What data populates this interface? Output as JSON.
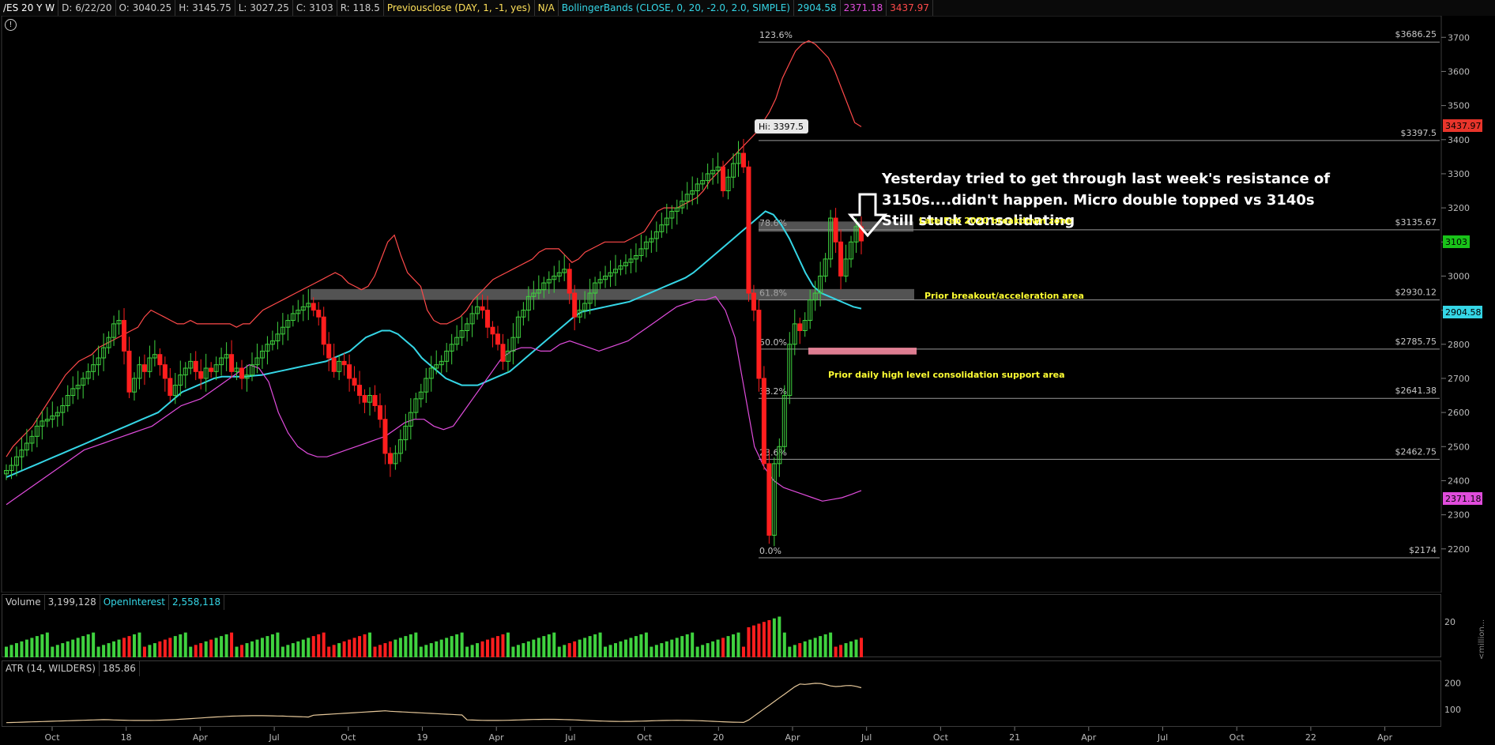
{
  "header": {
    "symbol": "/ES 20 Y W",
    "date": "D: 6/22/20",
    "open": "O: 3040.25",
    "high": "H: 3145.75",
    "low": "L: 3027.25",
    "close": "C: 3103",
    "range": "R: 118.5",
    "study1": "Previousclose (DAY, 1, -1, yes)",
    "study1_val": "N/A",
    "study2": "BollingerBands (CLOSE, 0, 20, -2.0, 2.0, SIMPLE)",
    "bb_mid": "2904.58",
    "bb_low": "2371.18",
    "bb_up": "3437.97"
  },
  "colors": {
    "up": "#3fd23f",
    "down": "#ff1e1e",
    "upper": "#ff4a4a",
    "mid": "#35d6e6",
    "lower": "#e04cdc",
    "annot": "#ffff33",
    "bg": "#000000"
  },
  "annotation": {
    "line1": "Yesterday tried to get through last week's resistance of",
    "line2": "3150s....didn't happen. Micro double topped vs 3140s",
    "line3": "Still stuck consolidating"
  },
  "zones": [
    {
      "label": "Late Feb 2020 breakdown zone"
    },
    {
      "label": "Prior breakout/acceleration area"
    },
    {
      "label": "Prior daily high level consolidation support area"
    }
  ],
  "hi_label": "Hi: 3397.5",
  "price_tags": {
    "last": "3103",
    "upper": "3437.97",
    "mid": "2904.58",
    "lower": "2371.18"
  },
  "volume_header": {
    "label": "Volume",
    "value": "3,199,128",
    "oi_label": "OpenInterest",
    "oi_value": "2,558,118",
    "unit": "<million..."
  },
  "atr_header": {
    "label": "ATR (14, WILDERS)",
    "value": "185.86"
  },
  "chart_data": [
    {
      "type": "candlestick",
      "title": "/ES 20 Y W",
      "ylim": [
        2130,
        3740
      ],
      "y_ticks": [
        2200,
        2300,
        2400,
        2500,
        2600,
        2700,
        2800,
        2900,
        3000,
        3100,
        3200,
        3300,
        3400,
        3500,
        3600,
        3700
      ],
      "x_ticks": [
        "Oct",
        "18",
        "Apr",
        "Jul",
        "Oct",
        "19",
        "Apr",
        "Jul",
        "Oct",
        "20",
        "Apr",
        "Jul",
        "Oct",
        "21",
        "Apr",
        "Jul",
        "Oct",
        "22",
        "Apr"
      ],
      "fib_levels": [
        {
          "pct": "123.6%",
          "value": 3686.25,
          "label": "$3686.25"
        },
        {
          "pct": "78.6%",
          "value": 3135.67,
          "label": "$3135.67"
        },
        {
          "pct": "61.8%",
          "value": 2930.12,
          "label": "$2930.12"
        },
        {
          "pct": "50.0%",
          "value": 2785.75,
          "label": "$2785.75"
        },
        {
          "pct": "38.2%",
          "value": 2641.38,
          "label": "$2641.38"
        },
        {
          "pct": "23.6%",
          "value": 2462.75,
          "label": "$2462.75"
        },
        {
          "pct": "0.0%",
          "value": 2174,
          "label": "$2174"
        },
        {
          "pct": "",
          "value": 3397.5,
          "label": "$3397.5"
        }
      ],
      "series": [
        {
          "name": "close",
          "values": [
            2430,
            2445,
            2470,
            2490,
            2510,
            2530,
            2560,
            2575,
            2580,
            2590,
            2600,
            2620,
            2650,
            2670,
            2680,
            2700,
            2720,
            2740,
            2760,
            2790,
            2820,
            2860,
            2870,
            2780,
            2660,
            2700,
            2740,
            2720,
            2760,
            2770,
            2740,
            2700,
            2650,
            2680,
            2710,
            2730,
            2750,
            2720,
            2700,
            2730,
            2720,
            2740,
            2760,
            2770,
            2720,
            2730,
            2700,
            2710,
            2740,
            2760,
            2780,
            2800,
            2810,
            2830,
            2850,
            2870,
            2890,
            2900,
            2910,
            2920,
            2900,
            2880,
            2800,
            2760,
            2720,
            2750,
            2740,
            2700,
            2680,
            2650,
            2630,
            2650,
            2620,
            2580,
            2480,
            2450,
            2480,
            2520,
            2560,
            2600,
            2640,
            2660,
            2700,
            2730,
            2740,
            2750,
            2780,
            2800,
            2820,
            2840,
            2860,
            2890,
            2910,
            2900,
            2850,
            2830,
            2800,
            2750,
            2780,
            2820,
            2880,
            2900,
            2940,
            2950,
            2960,
            2980,
            2990,
            3000,
            3010,
            3020,
            2950,
            2880,
            2900,
            2920,
            2950,
            2980,
            2990,
            3000,
            3010,
            3020,
            3030,
            3040,
            3050,
            3060,
            3080,
            3100,
            3110,
            3130,
            3150,
            3170,
            3190,
            3200,
            3220,
            3240,
            3250,
            3270,
            3280,
            3300,
            3310,
            3320,
            3250,
            3290,
            3330,
            3360,
            3320,
            2950,
            2900,
            2700,
            2450,
            2240,
            2450,
            2500,
            2650,
            2800,
            2860,
            2840,
            2870,
            2930,
            2950,
            3000,
            3050,
            3170,
            3100,
            3000,
            3050,
            3100,
            3145,
            3103
          ]
        },
        {
          "name": "bb_upper",
          "values": [
            2470,
            2500,
            2520,
            2540,
            2560,
            2590,
            2620,
            2650,
            2680,
            2710,
            2730,
            2750,
            2760,
            2770,
            2790,
            2800,
            2810,
            2820,
            2830,
            2840,
            2850,
            2880,
            2900,
            2890,
            2880,
            2870,
            2860,
            2860,
            2870,
            2860,
            2860,
            2860,
            2860,
            2860,
            2860,
            2850,
            2860,
            2860,
            2880,
            2900,
            2910,
            2920,
            2930,
            2940,
            2950,
            2960,
            2970,
            2980,
            2990,
            3000,
            3010,
            3000,
            2980,
            2970,
            2960,
            2970,
            3000,
            3050,
            3100,
            3120,
            3060,
            3010,
            2990,
            2970,
            2900,
            2870,
            2860,
            2860,
            2870,
            2880,
            2900,
            2930,
            2950,
            2970,
            2990,
            3000,
            3010,
            3020,
            3030,
            3040,
            3050,
            3070,
            3080,
            3080,
            3080,
            3060,
            3040,
            3050,
            3070,
            3080,
            3090,
            3100,
            3100,
            3100,
            3100,
            3110,
            3120,
            3130,
            3160,
            3190,
            3200,
            3200,
            3200,
            3210,
            3220,
            3230,
            3250,
            3280,
            3300,
            3320,
            3340,
            3360,
            3380,
            3400,
            3420,
            3450,
            3480,
            3520,
            3580,
            3620,
            3660,
            3680,
            3690,
            3680,
            3660,
            3640,
            3600,
            3550,
            3500,
            3450,
            3437.97
          ]
        },
        {
          "name": "bb_mid",
          "values": [
            2410,
            2420,
            2430,
            2440,
            2450,
            2460,
            2470,
            2480,
            2490,
            2500,
            2510,
            2520,
            2530,
            2540,
            2550,
            2560,
            2570,
            2580,
            2590,
            2600,
            2620,
            2640,
            2660,
            2670,
            2680,
            2690,
            2700,
            2705,
            2705,
            2705,
            2705,
            2708,
            2710,
            2715,
            2720,
            2725,
            2730,
            2735,
            2740,
            2745,
            2750,
            2760,
            2770,
            2780,
            2800,
            2820,
            2830,
            2840,
            2840,
            2830,
            2810,
            2790,
            2760,
            2740,
            2720,
            2700,
            2690,
            2680,
            2680,
            2680,
            2690,
            2700,
            2710,
            2720,
            2740,
            2760,
            2780,
            2800,
            2820,
            2840,
            2860,
            2880,
            2895,
            2900,
            2905,
            2910,
            2915,
            2920,
            2925,
            2935,
            2945,
            2955,
            2965,
            2975,
            2985,
            2995,
            3010,
            3030,
            3050,
            3070,
            3090,
            3110,
            3130,
            3150,
            3170,
            3190,
            3180,
            3150,
            3110,
            3060,
            3010,
            2970,
            2950,
            2940,
            2930,
            2920,
            2910,
            2904.58
          ]
        },
        {
          "name": "bb_lower",
          "values": [
            2330,
            2350,
            2370,
            2390,
            2410,
            2430,
            2450,
            2470,
            2490,
            2500,
            2510,
            2520,
            2530,
            2540,
            2550,
            2560,
            2580,
            2600,
            2620,
            2630,
            2640,
            2660,
            2680,
            2700,
            2720,
            2740,
            2730,
            2690,
            2600,
            2540,
            2500,
            2480,
            2470,
            2470,
            2480,
            2490,
            2500,
            2510,
            2520,
            2530,
            2550,
            2570,
            2580,
            2580,
            2560,
            2550,
            2560,
            2600,
            2640,
            2680,
            2720,
            2760,
            2780,
            2790,
            2790,
            2780,
            2780,
            2800,
            2810,
            2800,
            2790,
            2780,
            2790,
            2800,
            2810,
            2830,
            2850,
            2870,
            2890,
            2910,
            2920,
            2930,
            2930,
            2940,
            2900,
            2820,
            2660,
            2500,
            2440,
            2400,
            2380,
            2370,
            2360,
            2350,
            2340,
            2345,
            2350,
            2360,
            2371.18
          ]
        }
      ]
    },
    {
      "type": "bar",
      "title": "Volume",
      "ylim": [
        0,
        25
      ],
      "y_ticks": [
        20
      ]
    },
    {
      "type": "line",
      "title": "ATR (14, WILDERS)",
      "ylim": [
        40,
        220
      ],
      "y_ticks": [
        100,
        200
      ]
    }
  ]
}
